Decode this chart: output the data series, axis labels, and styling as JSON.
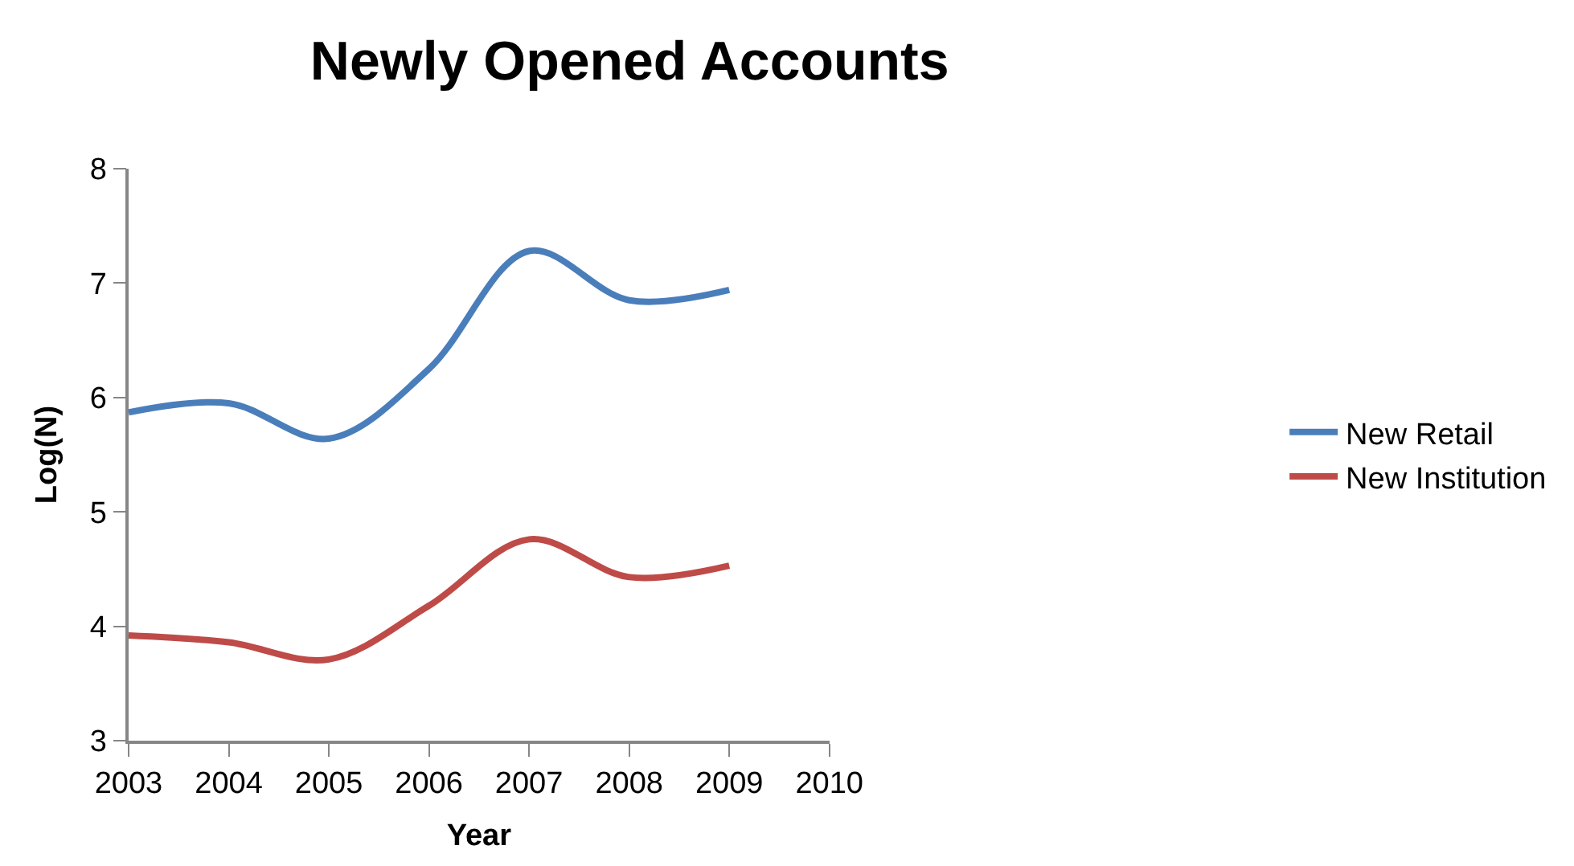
{
  "chart_data": {
    "type": "line",
    "title": "Newly Opened Accounts",
    "xlabel": "Year",
    "ylabel": "Log(N)",
    "x": [
      2003,
      2004,
      2005,
      2006,
      2007,
      2008,
      2009
    ],
    "series": [
      {
        "name": "New Retail",
        "color": "#4a7ebb",
        "values": [
          5.87,
          5.95,
          5.64,
          6.25,
          7.28,
          6.85,
          6.94
        ]
      },
      {
        "name": "New Institution",
        "color": "#be4b48",
        "values": [
          3.92,
          3.86,
          3.71,
          4.18,
          4.76,
          4.43,
          4.53
        ]
      }
    ],
    "xlim": [
      2003,
      2010
    ],
    "xticks": [
      2003,
      2004,
      2005,
      2006,
      2007,
      2008,
      2009,
      2010
    ],
    "ylim": [
      3,
      8
    ],
    "yticks": [
      3,
      4,
      5,
      6,
      7,
      8
    ],
    "grid": false,
    "legend": "right",
    "marker": "none",
    "line_style": "solid"
  }
}
